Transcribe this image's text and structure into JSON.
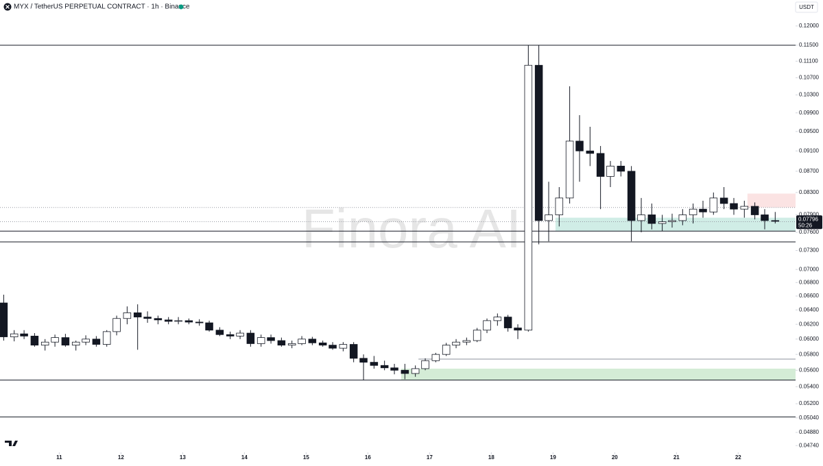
{
  "chart_data": {
    "type": "candlestick",
    "title": "MYX / TetherUS PERPETUAL CONTRACT · 1h · Binance",
    "currency": "USDT",
    "watermark": "Finora AI",
    "countdown": "50:26",
    "log_scale": true,
    "grid": false,
    "up_color": "#ffffff",
    "down_color": "#131722",
    "edge_color": "#131722",
    "xlim": [
      10.04,
      22.93
    ],
    "xticks": [
      11,
      12,
      13,
      14,
      15,
      16,
      17,
      18,
      19,
      20,
      21,
      22
    ],
    "ylim": [
      0.0467,
      0.1271
    ],
    "yticks": [
      {
        "value": 0.12,
        "label": "0.12000"
      },
      {
        "value": 0.115,
        "label": "0.11500"
      },
      {
        "value": 0.111,
        "label": "0.11100"
      },
      {
        "value": 0.107,
        "label": "0.10700"
      },
      {
        "value": 0.103,
        "label": "0.10300"
      },
      {
        "value": 0.099,
        "label": "0.09900"
      },
      {
        "value": 0.095,
        "label": "0.09500"
      },
      {
        "value": 0.091,
        "label": "0.09100"
      },
      {
        "value": 0.087,
        "label": "0.08700"
      },
      {
        "value": 0.083,
        "label": "0.08300"
      },
      {
        "value": 0.079,
        "label": "0.07900"
      },
      {
        "value": 0.076,
        "label": "0.07600"
      },
      {
        "value": 0.073,
        "label": "0.07300"
      },
      {
        "value": 0.07,
        "label": "0.07000"
      },
      {
        "value": 0.068,
        "label": "0.06800"
      },
      {
        "value": 0.066,
        "label": "0.06600"
      },
      {
        "value": 0.064,
        "label": "0.06400"
      },
      {
        "value": 0.062,
        "label": "0.06200"
      },
      {
        "value": 0.06,
        "label": "0.06000"
      },
      {
        "value": 0.058,
        "label": "0.05800"
      },
      {
        "value": 0.056,
        "label": "0.05600"
      },
      {
        "value": 0.054,
        "label": "0.05400"
      },
      {
        "value": 0.052,
        "label": "0.05200"
      },
      {
        "value": 0.0504,
        "label": "0.05040"
      },
      {
        "value": 0.0488,
        "label": "0.04880"
      },
      {
        "value": 0.0474,
        "label": "0.04740"
      }
    ],
    "x": [
      10.1,
      10.27,
      10.43,
      10.6,
      10.77,
      10.93,
      11.1,
      11.27,
      11.43,
      11.6,
      11.77,
      11.93,
      12.1,
      12.27,
      12.43,
      12.6,
      12.77,
      12.93,
      13.1,
      13.27,
      13.43,
      13.6,
      13.77,
      13.93,
      14.1,
      14.27,
      14.43,
      14.6,
      14.77,
      14.93,
      15.1,
      15.27,
      15.43,
      15.6,
      15.77,
      15.93,
      16.1,
      16.27,
      16.43,
      16.6,
      16.77,
      16.93,
      17.1,
      17.27,
      17.43,
      17.6,
      17.77,
      17.93,
      18.1,
      18.27,
      18.43,
      18.6,
      18.77,
      18.93,
      19.1,
      19.27,
      19.43,
      19.6,
      19.77,
      19.93,
      20.1,
      20.27,
      20.43,
      20.6,
      20.77,
      20.93,
      21.1,
      21.27,
      21.43,
      21.6,
      21.77,
      21.93,
      22.1,
      22.27,
      22.43,
      22.6
    ],
    "open": [
      0.065,
      0.0603,
      0.0607,
      0.0604,
      0.0592,
      0.0596,
      0.0602,
      0.0592,
      0.0596,
      0.06,
      0.0593,
      0.061,
      0.0628,
      0.0636,
      0.063,
      0.0628,
      0.0626,
      0.0624,
      0.0625,
      0.0623,
      0.0622,
      0.0612,
      0.0606,
      0.0604,
      0.0608,
      0.0594,
      0.0602,
      0.0598,
      0.0592,
      0.0594,
      0.06,
      0.0595,
      0.0592,
      0.0588,
      0.0593,
      0.0575,
      0.057,
      0.0566,
      0.0563,
      0.056,
      0.0556,
      0.0562,
      0.0572,
      0.058,
      0.0592,
      0.0596,
      0.0598,
      0.0612,
      0.0625,
      0.063,
      0.0615,
      0.0612,
      0.11,
      0.078,
      0.079,
      0.082,
      0.093,
      0.091,
      0.0905,
      0.086,
      0.088,
      0.087,
      0.078,
      0.079,
      0.0775,
      0.0778,
      0.078,
      0.079,
      0.08,
      0.0795,
      0.082,
      0.081,
      0.08,
      0.0805,
      0.079,
      0.078
    ],
    "high": [
      0.0662,
      0.0612,
      0.0612,
      0.0608,
      0.06,
      0.0606,
      0.0607,
      0.0598,
      0.0605,
      0.0604,
      0.0612,
      0.0632,
      0.0645,
      0.0648,
      0.0638,
      0.0632,
      0.063,
      0.063,
      0.0628,
      0.0627,
      0.0625,
      0.0616,
      0.061,
      0.0612,
      0.0612,
      0.0606,
      0.0606,
      0.0602,
      0.0598,
      0.0604,
      0.0603,
      0.0598,
      0.0596,
      0.0596,
      0.0596,
      0.058,
      0.0578,
      0.0572,
      0.0568,
      0.0568,
      0.0566,
      0.0575,
      0.0582,
      0.0595,
      0.06,
      0.0602,
      0.0615,
      0.0628,
      0.0635,
      0.0633,
      0.062,
      0.115,
      0.115,
      0.085,
      0.084,
      0.105,
      0.0985,
      0.096,
      0.092,
      0.089,
      0.089,
      0.088,
      0.082,
      0.081,
      0.079,
      0.0792,
      0.08,
      0.081,
      0.0815,
      0.083,
      0.084,
      0.082,
      0.0815,
      0.0812,
      0.08,
      0.0795
    ],
    "low": [
      0.0598,
      0.0597,
      0.06,
      0.059,
      0.0585,
      0.059,
      0.059,
      0.0585,
      0.0592,
      0.059,
      0.059,
      0.0605,
      0.062,
      0.0586,
      0.0622,
      0.062,
      0.062,
      0.062,
      0.062,
      0.0618,
      0.061,
      0.0604,
      0.06,
      0.06,
      0.059,
      0.059,
      0.0594,
      0.059,
      0.0588,
      0.0592,
      0.0592,
      0.059,
      0.0586,
      0.0584,
      0.057,
      0.0548,
      0.0562,
      0.056,
      0.0555,
      0.0549,
      0.0552,
      0.056,
      0.057,
      0.0578,
      0.0588,
      0.0592,
      0.0596,
      0.0608,
      0.0618,
      0.061,
      0.06,
      0.061,
      0.074,
      0.0745,
      0.077,
      0.081,
      0.085,
      0.088,
      0.08,
      0.084,
      0.086,
      0.0745,
      0.076,
      0.0765,
      0.0762,
      0.0768,
      0.0772,
      0.0775,
      0.0785,
      0.079,
      0.08,
      0.079,
      0.0785,
      0.0782,
      0.0765,
      0.0775
    ],
    "close": [
      0.0603,
      0.0607,
      0.0604,
      0.0592,
      0.0596,
      0.0602,
      0.0592,
      0.0596,
      0.06,
      0.0593,
      0.061,
      0.0628,
      0.0636,
      0.063,
      0.0628,
      0.0626,
      0.0624,
      0.0625,
      0.0623,
      0.0622,
      0.0612,
      0.0606,
      0.0604,
      0.0608,
      0.0594,
      0.0602,
      0.0598,
      0.0592,
      0.0594,
      0.06,
      0.0595,
      0.0592,
      0.0588,
      0.0593,
      0.0575,
      0.057,
      0.0566,
      0.0563,
      0.056,
      0.0556,
      0.0562,
      0.0572,
      0.058,
      0.0592,
      0.0596,
      0.0598,
      0.0612,
      0.0625,
      0.063,
      0.0615,
      0.0612,
      0.11,
      0.078,
      0.079,
      0.082,
      0.093,
      0.091,
      0.0905,
      0.086,
      0.088,
      0.087,
      0.078,
      0.079,
      0.0775,
      0.0778,
      0.078,
      0.079,
      0.08,
      0.0795,
      0.082,
      0.081,
      0.08,
      0.0805,
      0.079,
      0.078,
      0.07796
    ],
    "levels": [
      {
        "value": 0.115,
        "style": "solid"
      },
      {
        "value": 0.0803,
        "style": "dotted"
      },
      {
        "value": 0.0778,
        "style": "dotted"
      },
      {
        "value": 0.0762,
        "style": "solid"
      },
      {
        "value": 0.0744,
        "style": "solid"
      },
      {
        "value": 0.0548,
        "style": "solid"
      },
      {
        "value": 0.0505,
        "style": "solid"
      }
    ],
    "ray": {
      "value": 0.0574,
      "from": 16.82,
      "color": "#b2b5be"
    },
    "zones": [
      {
        "from": 16.54,
        "low": 0.0548,
        "high": 0.0562,
        "color": "#d4ecd6"
      },
      {
        "from": 19.04,
        "low": 0.0762,
        "high": 0.0785,
        "color": "#d0ede6"
      },
      {
        "from": 22.15,
        "low": 0.0803,
        "high": 0.0828,
        "color": "#fbe3e3"
      }
    ]
  }
}
